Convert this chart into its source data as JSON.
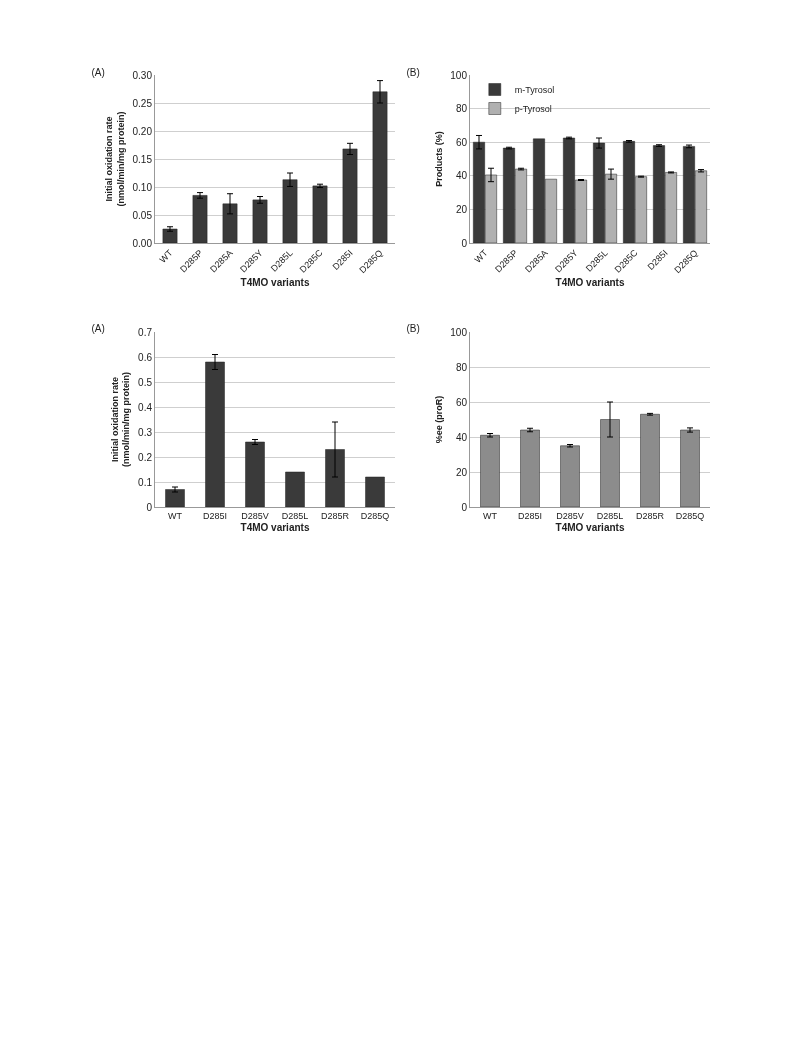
{
  "chart_data": [
    {
      "type": "bar",
      "title": "(A)",
      "xlabel": "T4MO variants",
      "ylabel": "Initial oxidation rate\n(nmol/min/mg protein)",
      "categories": [
        "WT",
        "D285P",
        "D285A",
        "D285Y",
        "D285L",
        "D285C",
        "D285I",
        "D285Q"
      ],
      "values": [
        0.025,
        0.085,
        0.07,
        0.077,
        0.113,
        0.102,
        0.168,
        0.27
      ],
      "errors": [
        0.004,
        0.005,
        0.018,
        0.006,
        0.012,
        0.003,
        0.01,
        0.02
      ],
      "color": "#3a3a3a",
      "ylim": [
        0,
        0.3
      ],
      "yticks": [
        {
          "value": 0,
          "label": "0.00"
        },
        {
          "value": 0.05,
          "label": "0.05"
        },
        {
          "value": 0.1,
          "label": "0.10"
        },
        {
          "value": 0.15,
          "label": "0.15"
        },
        {
          "value": 0.2,
          "label": "0.20"
        },
        {
          "value": 0.25,
          "label": "0.25"
        },
        {
          "value": 0.3,
          "label": "0.30"
        }
      ],
      "grid": "y"
    },
    {
      "type": "bar",
      "title": "(B)",
      "xlabel": "T4MO variants",
      "ylabel": "Products (%)",
      "categories": [
        "WT",
        "D285P",
        "D285A",
        "D285Y",
        "D285L",
        "D285C",
        "D285I",
        "D285Q"
      ],
      "series": [
        {
          "name": "m-Tyrosol",
          "color": "#3a3a3a",
          "values": [
            60,
            56.5,
            62,
            62.5,
            59.5,
            60.5,
            58,
            57.5
          ],
          "errors": [
            4,
            0.5,
            null,
            0.5,
            3,
            0.5,
            0.5,
            0.8
          ]
        },
        {
          "name": "p-Tyrosol",
          "color": "#b0b0b0",
          "values": [
            40.5,
            44,
            38,
            37.5,
            41,
            39.5,
            42,
            43
          ],
          "errors": [
            4,
            0.5,
            null,
            0.3,
            3,
            0.3,
            0.3,
            0.7
          ]
        }
      ],
      "ylim": [
        0,
        100
      ],
      "yticks": [
        0,
        20,
        40,
        60,
        80,
        100
      ],
      "grid": "y",
      "legend": "top left"
    },
    {
      "type": "bar",
      "title": "(A)",
      "xlabel": "T4MO variants",
      "ylabel": "Initial oxidation rate\n(nmol/min/mg protein)",
      "categories": [
        "WT",
        "D285I",
        "D285V",
        "D285L",
        "D285R",
        "D285Q"
      ],
      "values": [
        0.07,
        0.58,
        0.26,
        0.14,
        0.23,
        0.12
      ],
      "errors": [
        0.01,
        0.03,
        0.01,
        null,
        0.11,
        null
      ],
      "color": "#3a3a3a",
      "ylim": [
        0,
        0.7
      ],
      "yticks": [
        0,
        0.1,
        0.2,
        0.3,
        0.4,
        0.5,
        0.6,
        0.7
      ],
      "grid": "y"
    },
    {
      "type": "bar",
      "title": "(B)",
      "xlabel": "T4MO variants",
      "ylabel": "%ee (proR)",
      "categories": [
        "WT",
        "D285I",
        "D285V",
        "D285L",
        "D285R",
        "D285Q"
      ],
      "values": [
        41,
        44,
        35,
        50,
        53,
        44
      ],
      "errors": [
        1,
        1,
        0.7,
        10,
        0.5,
        1.2
      ],
      "color": "#8c8c8c",
      "ylim": [
        0,
        100
      ],
      "yticks": [
        0,
        20,
        40,
        60,
        80,
        100
      ],
      "grid": "y"
    }
  ]
}
